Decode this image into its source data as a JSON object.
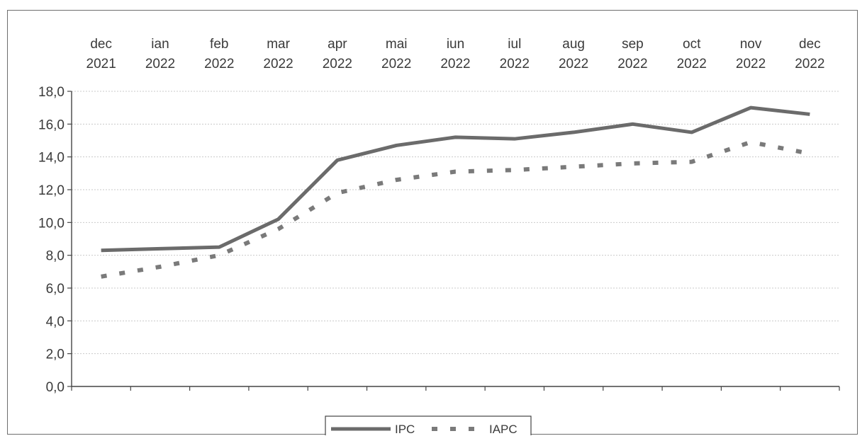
{
  "chart_data": {
    "type": "line",
    "title": "",
    "xlabel": "",
    "ylabel": "",
    "categories": [
      [
        "dec",
        "2021"
      ],
      [
        "ian",
        "2022"
      ],
      [
        "feb",
        "2022"
      ],
      [
        "mar",
        "2022"
      ],
      [
        "apr",
        "2022"
      ],
      [
        "mai",
        "2022"
      ],
      [
        "iun",
        "2022"
      ],
      [
        "iul",
        "2022"
      ],
      [
        "aug",
        "2022"
      ],
      [
        "sep",
        "2022"
      ],
      [
        "oct",
        "2022"
      ],
      [
        "nov",
        "2022"
      ],
      [
        "dec",
        "2022"
      ]
    ],
    "y_tick_labels": [
      "0,0",
      "2,0",
      "4,0",
      "6,0",
      "8,0",
      "10,0",
      "12,0",
      "14,0",
      "16,0",
      "18,0"
    ],
    "ylim": [
      0,
      18
    ],
    "y_step": 2,
    "grid": true,
    "x_axis_position": "top",
    "legend_placement": "bottom-center",
    "series": [
      {
        "name": "IPC",
        "style": "solid",
        "color": "#6b6b6b",
        "values": [
          8.3,
          8.4,
          8.5,
          10.2,
          13.8,
          14.7,
          15.2,
          15.1,
          15.5,
          16.0,
          15.5,
          17.0,
          16.6
        ]
      },
      {
        "name": "IAPC",
        "style": "dashed",
        "color": "#7a7a7a",
        "values": [
          6.7,
          7.3,
          8.0,
          9.6,
          11.8,
          12.6,
          13.1,
          13.2,
          13.4,
          13.6,
          13.7,
          14.9,
          14.2
        ]
      }
    ]
  }
}
